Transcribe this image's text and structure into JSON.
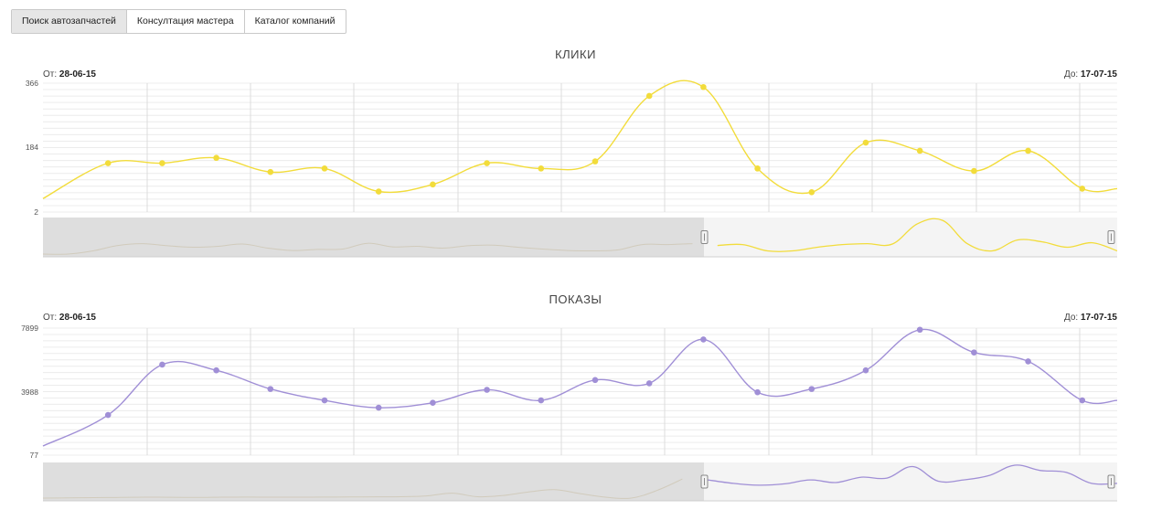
{
  "tabs": [
    {
      "label": "Поиск автозапчастей",
      "active": true
    },
    {
      "label": "Консултация мастера",
      "active": false
    },
    {
      "label": "Каталог компаний",
      "active": false
    }
  ],
  "chart_data": [
    {
      "type": "line",
      "title": "КЛИКИ",
      "from_label": "От:",
      "from_date": "28-06-15",
      "to_label": "До:",
      "to_date": "17-07-15",
      "yticks": [
        "366",
        "184",
        "2"
      ],
      "ylim": [
        2,
        366
      ],
      "color": "#f2dc3b",
      "navigator_color": "#f2dc3b",
      "values": [
        40,
        140,
        140,
        155,
        115,
        125,
        60,
        80,
        140,
        125,
        145,
        330,
        355,
        125,
        58,
        198,
        175,
        118,
        175,
        68,
        68
      ],
      "navigator_values": [
        2,
        2,
        20,
        50,
        60,
        48,
        40,
        45,
        58,
        35,
        22,
        28,
        30,
        62,
        42,
        45,
        35,
        48,
        52,
        40,
        30,
        22,
        20,
        25,
        55,
        55,
        60,
        50,
        55,
        20,
        20,
        40,
        55,
        60,
        58,
        170,
        190,
        60,
        20,
        80,
        70,
        40,
        65,
        20
      ]
    },
    {
      "type": "line",
      "title": "ПОКАЗЫ",
      "from_label": "От:",
      "from_date": "28-06-15",
      "to_label": "До:",
      "to_date": "17-07-15",
      "yticks": [
        "7899",
        "3988",
        "77"
      ],
      "ylim": [
        77,
        7899
      ],
      "color": "#a08fd6",
      "navigator_color": "#a08fd6",
      "values": [
        640,
        2550,
        5650,
        5300,
        4150,
        3450,
        3000,
        3300,
        4100,
        3450,
        4700,
        4500,
        7200,
        3950,
        4150,
        5300,
        7800,
        6400,
        5850,
        3450,
        3450
      ],
      "navigator_values": [
        100,
        150,
        200,
        250,
        300,
        280,
        250,
        300,
        320,
        310,
        300,
        320,
        350,
        380,
        400,
        600,
        1200,
        400,
        700,
        1500,
        2000,
        1100,
        300,
        100,
        1800,
        4400,
        4200,
        3400,
        3000,
        3300,
        4200,
        3600,
        4800,
        4600,
        7200,
        3900,
        4200,
        5200,
        7500,
        6300,
        5900,
        3400,
        3400
      ]
    }
  ]
}
